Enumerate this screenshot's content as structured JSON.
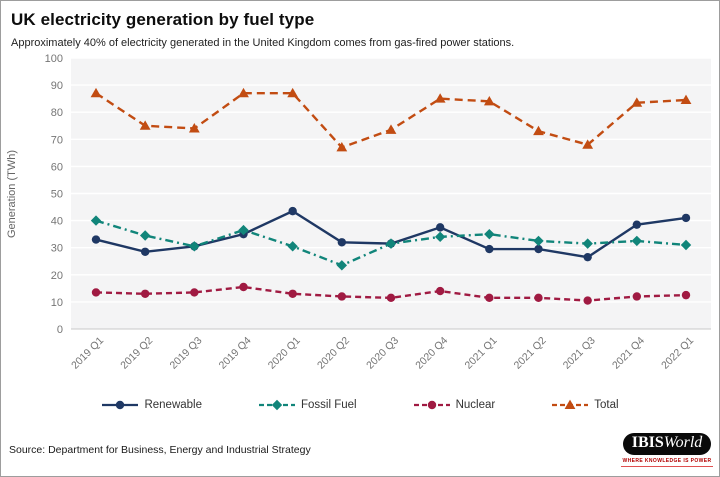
{
  "header": {
    "title": "UK electricity generation by fuel type",
    "subtitle": "Approximately 40% of electricity generated in the United Kingdom comes from gas-fired power stations."
  },
  "chart_data": {
    "type": "line",
    "title": "UK electricity generation by fuel type",
    "xlabel": "",
    "ylabel": "Generation (TWh)",
    "ylim": [
      0,
      100
    ],
    "ytick_step": 10,
    "grid": true,
    "legend_position": "bottom",
    "categories": [
      "2019 Q1",
      "2019 Q2",
      "2019 Q3",
      "2019 Q4",
      "2020 Q1",
      "2020 Q2",
      "2020 Q3",
      "2020 Q4",
      "2021 Q1",
      "2021 Q2",
      "2021 Q3",
      "2021 Q4",
      "2022 Q1"
    ],
    "series": [
      {
        "name": "Renewable",
        "color": "#1F3864",
        "marker": "circle",
        "dash": "",
        "values": [
          33,
          28.5,
          30.5,
          35,
          43.5,
          32,
          31.5,
          37.5,
          29.5,
          29.5,
          26.5,
          38.5,
          41
        ]
      },
      {
        "name": "Fossil Fuel",
        "color": "#11857A",
        "marker": "diamond",
        "dash": "8 4 2 4",
        "values": [
          40,
          34.5,
          30.5,
          36.5,
          30.5,
          23.5,
          31.5,
          34,
          35,
          32.5,
          31.5,
          32.5,
          31
        ]
      },
      {
        "name": "Nuclear",
        "color": "#A01A42",
        "marker": "circle",
        "dash": "6 4",
        "values": [
          13.5,
          13,
          13.5,
          15.5,
          13,
          12,
          11.5,
          14,
          11.5,
          11.5,
          10.5,
          12,
          12.5
        ]
      },
      {
        "name": "Total",
        "color": "#C24C12",
        "marker": "triangle",
        "dash": "8 5",
        "values": [
          87,
          75,
          74,
          87,
          87,
          67,
          73.5,
          85,
          84,
          73,
          68,
          83.5,
          84.5
        ]
      }
    ]
  },
  "colors": {
    "plot_background": "#f4f4f5",
    "gridline": "#ffffff",
    "axis_line": "#c9c9c9",
    "tick_label": "#757575",
    "axis_title": "#666666"
  },
  "footer": {
    "source": "Source: Department for Business, Energy and Industrial Strategy",
    "logo": {
      "ibis": "IBIS",
      "world": "World",
      "tagline": "WHERE KNOWLEDGE IS POWER"
    }
  }
}
